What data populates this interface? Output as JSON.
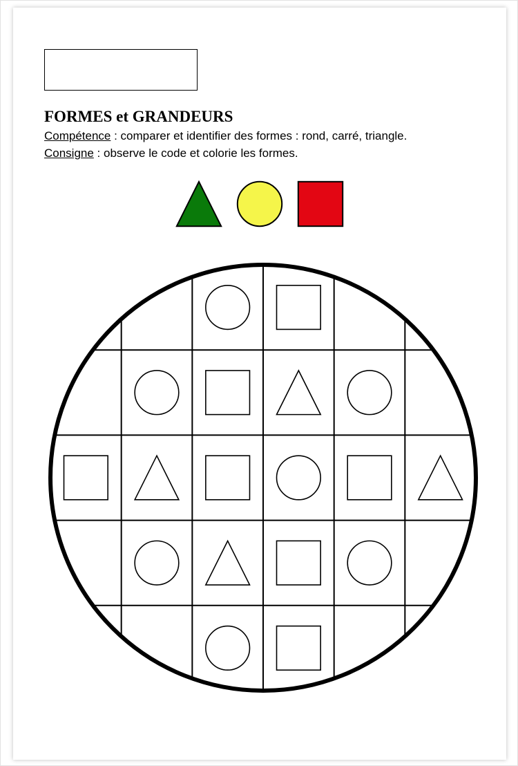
{
  "header": {
    "title": "FORMES et GRANDEURS",
    "competence_label": "Compétence",
    "competence_text": " : comparer et identifier des formes : rond, carré, triangle.",
    "consigne_label": "Consigne",
    "consigne_text": " : observe le code et colorie les formes."
  },
  "legend": {
    "shapes": [
      {
        "type": "triangle",
        "fill": "#0a7a0a",
        "stroke": "#000000"
      },
      {
        "type": "circle",
        "fill": "#f5f54a",
        "stroke": "#000000"
      },
      {
        "type": "square",
        "fill": "#e30613",
        "stroke": "#000000"
      }
    ],
    "shape_size": 70,
    "gap": 18,
    "stroke_width": 2
  },
  "worksheet": {
    "outer_stroke": "#000000",
    "outer_stroke_width": 6,
    "grid_stroke": "#000000",
    "grid_stroke_width": 2,
    "shape_stroke": "#000000",
    "shape_stroke_width": 1.6,
    "shape_fill": "#ffffff",
    "grid": {
      "cols": 6,
      "rows": 5,
      "cells": [
        [
          "",
          "",
          "circle",
          "square",
          "",
          ""
        ],
        [
          "",
          "circle",
          "square",
          "triangle",
          "circle",
          ""
        ],
        [
          "square",
          "triangle",
          "square",
          "circle",
          "square",
          "triangle"
        ],
        [
          "",
          "circle",
          "triangle",
          "square",
          "circle",
          ""
        ],
        [
          "",
          "",
          "circle",
          "square",
          "",
          ""
        ]
      ]
    }
  },
  "colors": {
    "page_bg": "#ffffff",
    "stage_bg": "#ffffff"
  }
}
